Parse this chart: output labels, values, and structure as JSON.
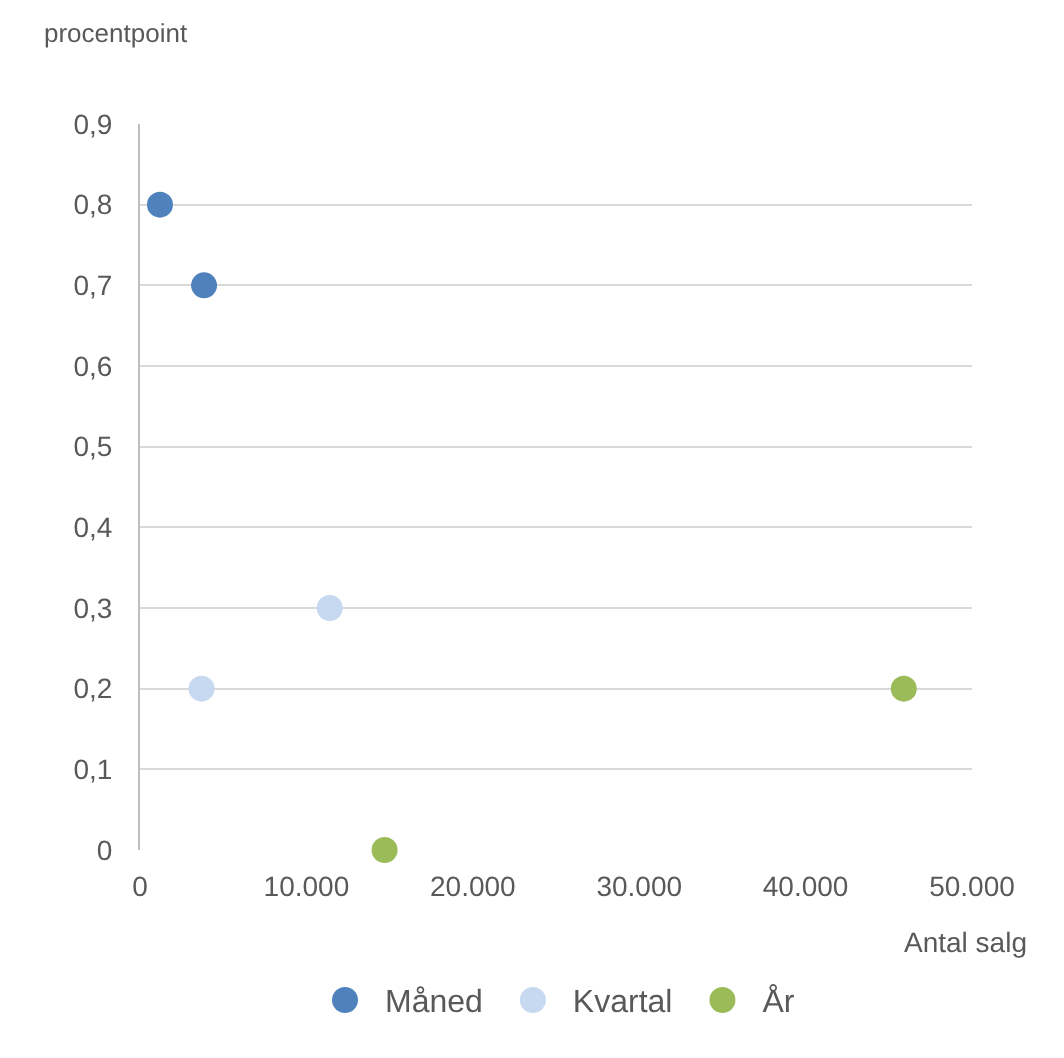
{
  "chart_data": {
    "type": "scatter",
    "ylabel": "procentpoint",
    "xlabel": "Antal salg",
    "series": [
      {
        "name": "Måned",
        "color": "#4f81bd",
        "x": [
          1200,
          3850
        ],
        "values": [
          0.8,
          0.7
        ]
      },
      {
        "name": "Kvartal",
        "color": "#c6d9f1",
        "x": [
          3700,
          11400
        ],
        "values": [
          0.2,
          0.3
        ]
      },
      {
        "name": "År",
        "color": "#9bbb59",
        "x": [
          14700,
          45900
        ],
        "values": [
          0,
          0.2
        ]
      }
    ],
    "xlim": [
      0,
      50000
    ],
    "xticks": [
      {
        "value": 0,
        "label": "0"
      },
      {
        "value": 10000,
        "label": "10.000"
      },
      {
        "value": 20000,
        "label": "20.000"
      },
      {
        "value": 30000,
        "label": "30.000"
      },
      {
        "value": 40000,
        "label": "40.000"
      },
      {
        "value": 50000,
        "label": "50.000"
      }
    ],
    "ylim": [
      0,
      0.9
    ],
    "yticks": [
      {
        "value": 0,
        "label": "0"
      },
      {
        "value": 0.1,
        "label": "0,1"
      },
      {
        "value": 0.2,
        "label": "0,2"
      },
      {
        "value": 0.3,
        "label": "0,3"
      },
      {
        "value": 0.4,
        "label": "0,4"
      },
      {
        "value": 0.5,
        "label": "0,5"
      },
      {
        "value": 0.6,
        "label": "0,6"
      },
      {
        "value": 0.7,
        "label": "0,7"
      },
      {
        "value": 0.8,
        "label": "0,8"
      },
      {
        "value": 0.9,
        "label": "0,9"
      }
    ],
    "grid": "y",
    "legend": "bottom",
    "marker": "circle"
  }
}
